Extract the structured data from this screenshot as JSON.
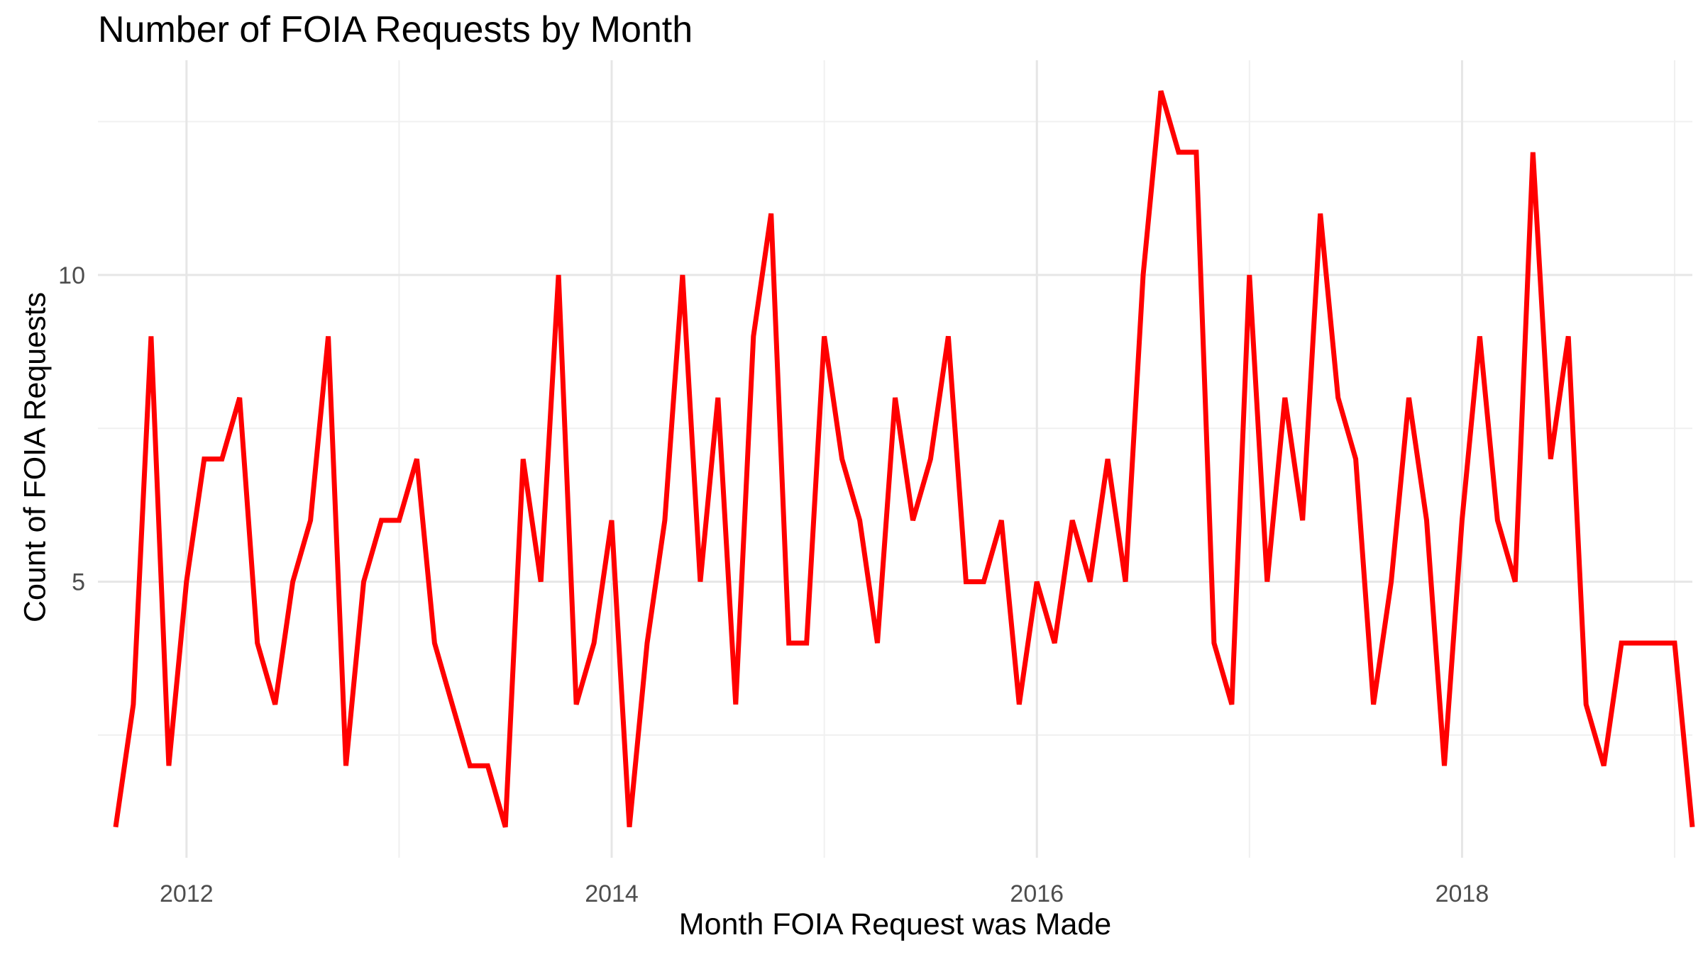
{
  "chart_data": {
    "type": "line",
    "title": "Number of FOIA Requests by Month",
    "xlabel": "Month FOIA Request was Made",
    "ylabel": "Count of FOIA Requests",
    "x_ticks": [
      "2012",
      "2014",
      "2016",
      "2018"
    ],
    "y_ticks": [
      "5",
      "10"
    ],
    "xlim": [
      "2011-08-01",
      "2019-02-01"
    ],
    "ylim": [
      0.5,
      13.5
    ],
    "grid": true,
    "line_color": "#ff0000",
    "x": [
      "2011-09",
      "2011-10",
      "2011-11",
      "2011-12",
      "2012-01",
      "2012-02",
      "2012-03",
      "2012-04",
      "2012-05",
      "2012-06",
      "2012-07",
      "2012-08",
      "2012-09",
      "2012-10",
      "2012-11",
      "2012-12",
      "2013-01",
      "2013-02",
      "2013-03",
      "2013-04",
      "2013-05",
      "2013-06",
      "2013-07",
      "2013-08",
      "2013-09",
      "2013-10",
      "2013-11",
      "2013-12",
      "2014-01",
      "2014-02",
      "2014-03",
      "2014-04",
      "2014-05",
      "2014-06",
      "2014-07",
      "2014-08",
      "2014-09",
      "2014-10",
      "2014-11",
      "2014-12",
      "2015-01",
      "2015-02",
      "2015-03",
      "2015-04",
      "2015-05",
      "2015-06",
      "2015-07",
      "2015-08",
      "2015-09",
      "2015-10",
      "2015-11",
      "2015-12",
      "2016-01",
      "2016-02",
      "2016-03",
      "2016-04",
      "2016-05",
      "2016-06",
      "2016-07",
      "2016-08",
      "2016-09",
      "2016-10",
      "2016-11",
      "2016-12",
      "2017-01",
      "2017-02",
      "2017-03",
      "2017-04",
      "2017-05",
      "2017-06",
      "2017-07",
      "2017-08",
      "2017-09",
      "2017-10",
      "2017-11",
      "2017-12",
      "2018-01",
      "2018-02",
      "2018-03",
      "2018-04",
      "2018-05",
      "2018-06",
      "2018-07",
      "2018-08",
      "2018-09",
      "2018-10",
      "2018-11",
      "2018-12",
      "2019-01",
      "2019-02"
    ],
    "series": [
      {
        "values": [
          1,
          3,
          9,
          2,
          5,
          7,
          7,
          8,
          4,
          3,
          5,
          6,
          9,
          2,
          5,
          6,
          6,
          7,
          4,
          3,
          2,
          2,
          1,
          7,
          5,
          10,
          3,
          4,
          6,
          1,
          4,
          6,
          10,
          5,
          8,
          3,
          9,
          11,
          4,
          4,
          9,
          7,
          6,
          4,
          8,
          6,
          7,
          9,
          5,
          5,
          6,
          3,
          5,
          4,
          6,
          5,
          7,
          5,
          10,
          13,
          12,
          12,
          4,
          3,
          10,
          5,
          8,
          6,
          11,
          8,
          7,
          3,
          5,
          8,
          6,
          2,
          6,
          9,
          6,
          5,
          12,
          7,
          9,
          3,
          2,
          4,
          4,
          4,
          4,
          1
        ]
      }
    ]
  }
}
